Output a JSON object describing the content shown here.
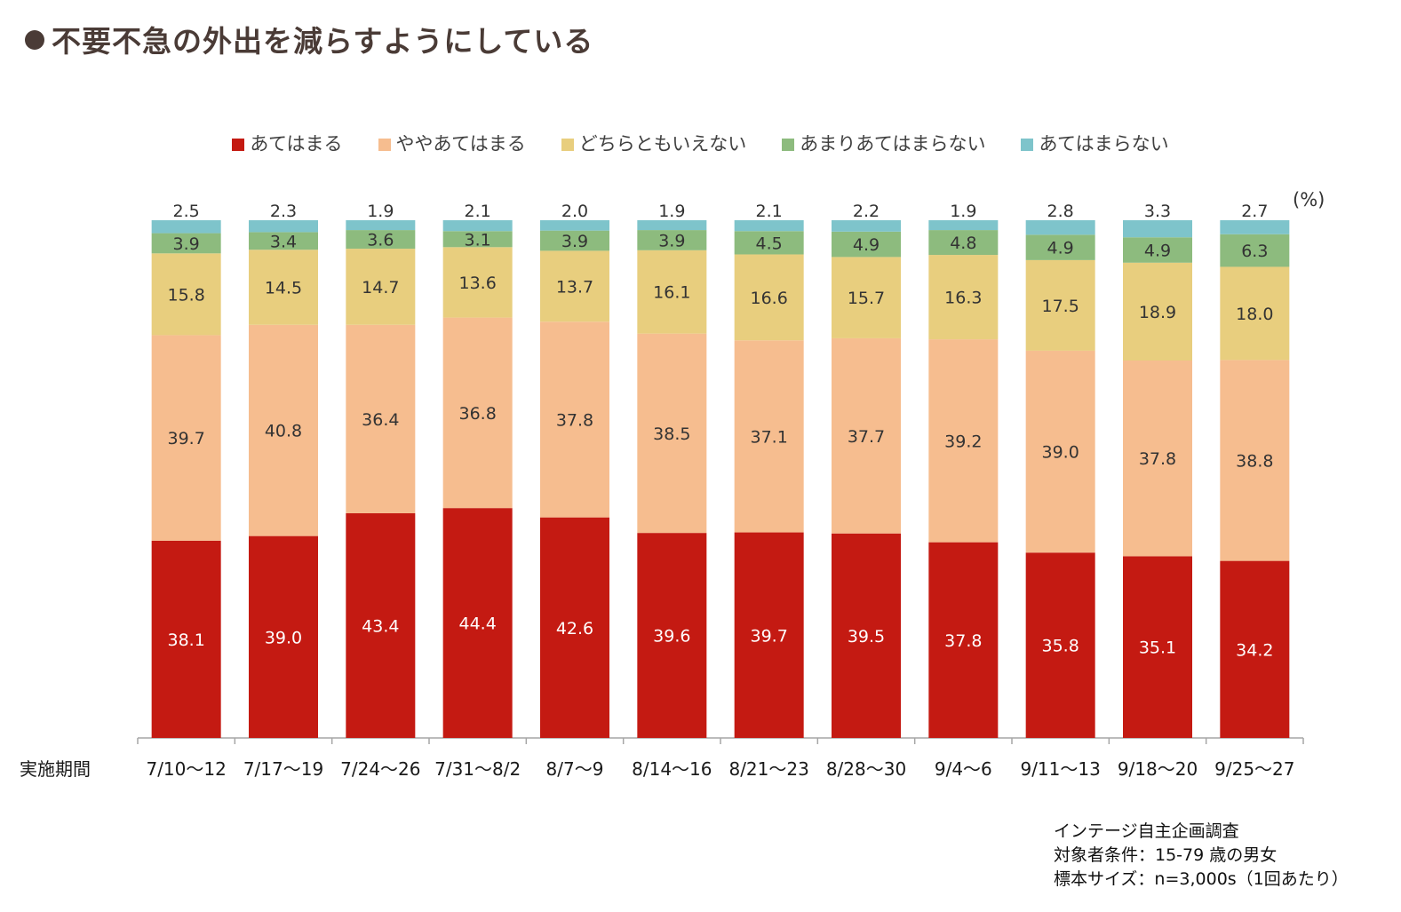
{
  "title": "不要不急の外出を減らすようにしている",
  "chart_data": {
    "type": "bar",
    "stacked": true,
    "categories": [
      "7/10～12",
      "7/17～19",
      "7/24～26",
      "7/31～8/2",
      "8/7～9",
      "8/14～16",
      "8/21～23",
      "8/28～30",
      "9/4～6",
      "9/11～13",
      "9/18～20",
      "9/25～27"
    ],
    "x_axis_title": "実施期間",
    "unit_label": "(%)",
    "ylim": [
      0,
      100
    ],
    "legend_position": "top",
    "series": [
      {
        "name": "あてはまる",
        "color": "#c41a12",
        "label_color": "#ffffff",
        "values": [
          38.1,
          39.0,
          43.4,
          44.4,
          42.6,
          39.6,
          39.7,
          39.5,
          37.8,
          35.8,
          35.1,
          34.2
        ]
      },
      {
        "name": "ややあてはまる",
        "color": "#f6bd8f",
        "label_color": "#333333",
        "values": [
          39.7,
          40.8,
          36.4,
          36.8,
          37.8,
          38.5,
          37.1,
          37.7,
          39.2,
          39.0,
          37.8,
          38.8
        ]
      },
      {
        "name": "どちらともいえない",
        "color": "#e8ce7e",
        "label_color": "#333333",
        "values": [
          15.8,
          14.5,
          14.7,
          13.6,
          13.7,
          16.1,
          16.6,
          15.7,
          16.3,
          17.5,
          18.9,
          18.0
        ]
      },
      {
        "name": "あまりあてはまらない",
        "color": "#8dbb7e",
        "label_color": "#333333",
        "values": [
          3.9,
          3.4,
          3.6,
          3.1,
          3.9,
          3.9,
          4.5,
          4.9,
          4.8,
          4.9,
          4.9,
          6.3
        ]
      },
      {
        "name": "あてはまらない",
        "color": "#7ec4cb",
        "label_color": "#333333",
        "values": [
          2.5,
          2.3,
          1.9,
          2.1,
          2.0,
          1.9,
          2.1,
          2.2,
          1.9,
          2.8,
          3.3,
          2.7
        ]
      }
    ]
  },
  "notes": [
    "インテージ自主企画調査",
    "対象者条件：15-79 歳の男女",
    "標本サイズ：n=3,000s（1回あたり）"
  ]
}
